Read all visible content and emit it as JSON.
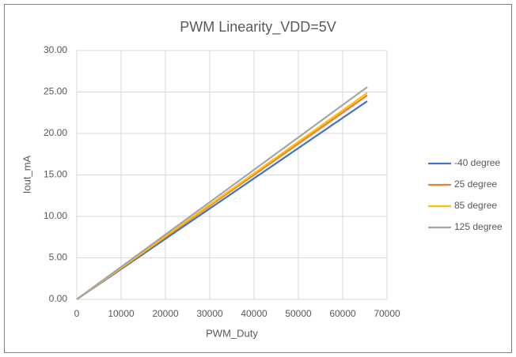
{
  "chart_data": {
    "type": "line",
    "title": "PWM Linearity_VDD=5V",
    "x_label": "PWM_Duty",
    "y_label": "Iout_mA",
    "x": [
      0,
      65535
    ],
    "series": [
      {
        "name": "-40 degree",
        "color": "#4472c4",
        "values": [
          0,
          23.9
        ]
      },
      {
        "name": "25 degree",
        "color": "#ed7d31",
        "values": [
          0,
          24.6
        ]
      },
      {
        "name": "85 degree",
        "color": "#ffc000",
        "values": [
          0,
          24.9
        ]
      },
      {
        "name": "125 degree",
        "color": "#a5a5a5",
        "values": [
          0,
          25.6
        ]
      }
    ],
    "xlim": [
      0,
      70000
    ],
    "xticks": [
      0,
      10000,
      20000,
      30000,
      40000,
      50000,
      60000,
      70000
    ],
    "ylim": [
      0,
      30
    ],
    "yticks": [
      {
        "value": 0,
        "label": "0.00"
      },
      {
        "value": 5,
        "label": "5.00"
      },
      {
        "value": 10,
        "label": "10.00"
      },
      {
        "value": 15,
        "label": "15.00"
      },
      {
        "value": 20,
        "label": "20.00"
      },
      {
        "value": 25,
        "label": "25.00"
      },
      {
        "value": 30,
        "label": "30.00"
      }
    ],
    "grid": true,
    "legend": "right"
  }
}
